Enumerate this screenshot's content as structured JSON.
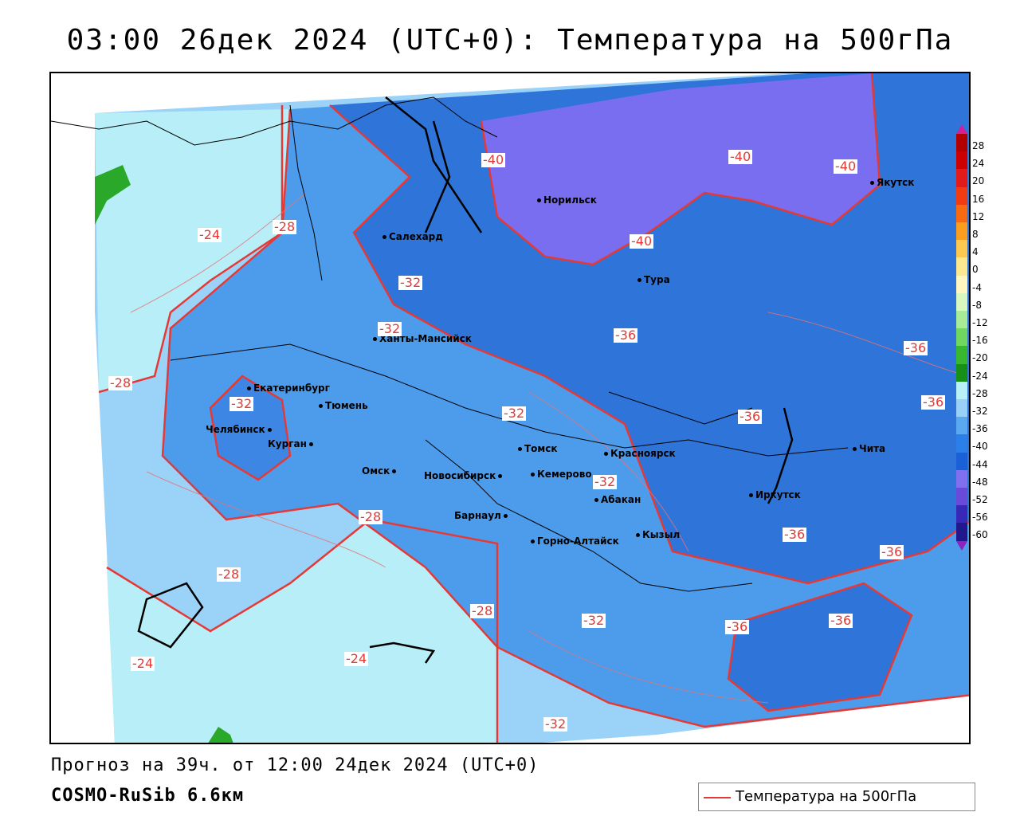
{
  "title": "03:00 26дек 2024 (UTC+0): Температура на 500гПа",
  "footer": {
    "forecast": "Прогноз на 39ч. от 12:00 24дек 2024 (UTC+0)",
    "model": "COSMO-RuSib 6.6км"
  },
  "legend": {
    "label": "Температура на 500гПа",
    "color": "#e53935"
  },
  "colorbar": {
    "labels": [
      "28",
      "24",
      "20",
      "16",
      "12",
      "8",
      "4",
      "0",
      "-4",
      "-8",
      "-12",
      "-16",
      "-20",
      "-24",
      "-28",
      "-32",
      "-36",
      "-40",
      "-44",
      "-48",
      "-52",
      "-56",
      "-60"
    ],
    "colors": [
      "#b00000",
      "#cc0000",
      "#e21a1a",
      "#f03c10",
      "#f86a10",
      "#fb9e20",
      "#fcc850",
      "#fde890",
      "#fff6c0",
      "#d8f8c0",
      "#a8ec98",
      "#70d860",
      "#38b830",
      "#169016",
      "#b8f0f8",
      "#98d0f8",
      "#5aa8f0",
      "#2a80e8",
      "#1a60d8",
      "#8070f0",
      "#6a4ad8",
      "#3828b8",
      "#20188c"
    ]
  },
  "cities": [
    {
      "name": "Салехард"
    },
    {
      "name": "Норильск"
    },
    {
      "name": "Якутск"
    },
    {
      "name": "Тура"
    },
    {
      "name": "Ханты-Мансийск"
    },
    {
      "name": "Екатеринбург"
    },
    {
      "name": "Тюмень"
    },
    {
      "name": "Челябинск"
    },
    {
      "name": "Курган"
    },
    {
      "name": "Омск"
    },
    {
      "name": "Новосибирск"
    },
    {
      "name": "Томск"
    },
    {
      "name": "Кемерово"
    },
    {
      "name": "Красноярск"
    },
    {
      "name": "Абакан"
    },
    {
      "name": "Барнаул"
    },
    {
      "name": "Горно-Алтайск"
    },
    {
      "name": "Кызыл"
    },
    {
      "name": "Иркутск"
    },
    {
      "name": "Чита"
    }
  ],
  "isotherm_labels": [
    {
      "text": "-24"
    },
    {
      "text": "-28"
    },
    {
      "text": "-40"
    },
    {
      "text": "-40"
    },
    {
      "text": "-40"
    },
    {
      "text": "-40"
    },
    {
      "text": "-32"
    },
    {
      "text": "-32"
    },
    {
      "text": "-36"
    },
    {
      "text": "-36"
    },
    {
      "text": "-28"
    },
    {
      "text": "-32"
    },
    {
      "text": "-32"
    },
    {
      "text": "-36"
    },
    {
      "text": "-36"
    },
    {
      "text": "-32"
    },
    {
      "text": "-28"
    },
    {
      "text": "-36"
    },
    {
      "text": "-36"
    },
    {
      "text": "-28"
    },
    {
      "text": "-28"
    },
    {
      "text": "-32"
    },
    {
      "text": "-36"
    },
    {
      "text": "-36"
    },
    {
      "text": "-24"
    },
    {
      "text": "-24"
    },
    {
      "text": "-32"
    }
  ]
}
